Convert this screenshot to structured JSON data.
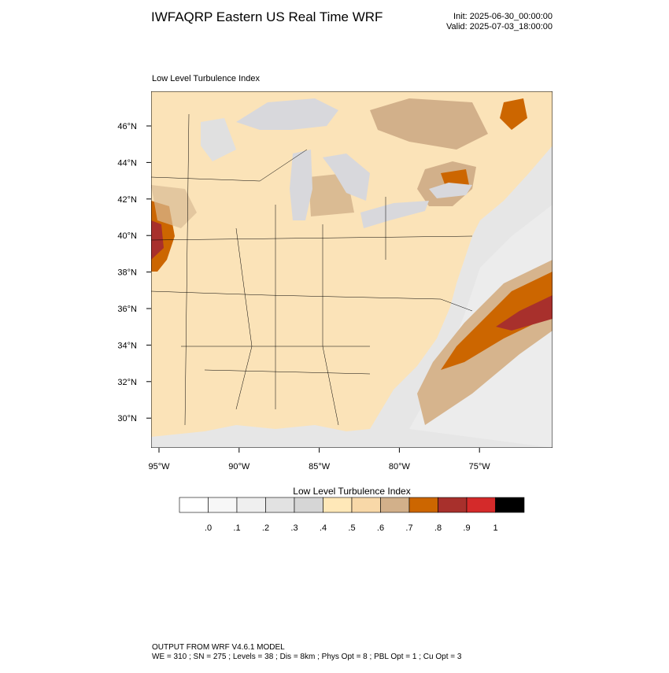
{
  "header": {
    "title": "IWFAQRP Eastern US Real Time WRF",
    "init": "Init: 2025-06-30_00:00:00",
    "valid": "Valid: 2025-07-03_18:00:00"
  },
  "map": {
    "subtitle": "Low Level Turbulence Index",
    "lat_labels": [
      "46°N",
      "44°N",
      "42°N",
      "40°N",
      "38°N",
      "36°N",
      "34°N",
      "32°N",
      "30°N"
    ],
    "lon_labels": [
      "95°W",
      "90°W",
      "85°W",
      "80°W",
      "75°W"
    ]
  },
  "colorbar": {
    "title": "Low Level Turbulence Index",
    "colors": [
      "#ffffff",
      "#f7f7f7",
      "#efefef",
      "#e2e2e2",
      "#d6d6d6",
      "#ffe8b8",
      "#f8d8a8",
      "#d2b08a",
      "#cc6600",
      "#a8302c",
      "#d42a2a",
      "#000000"
    ],
    "labels": [
      ".0",
      ".1",
      ".2",
      ".3",
      ".4",
      ".5",
      ".6",
      ".7",
      ".8",
      ".9",
      "1"
    ]
  },
  "footer": {
    "line1": "OUTPUT FROM WRF V4.6.1 MODEL",
    "line2": "WE = 310 ; SN = 275 ; Levels = 38 ; Dis = 8km ; Phys Opt = 8 ; PBL Opt = 1 ; Cu Opt = 3"
  }
}
